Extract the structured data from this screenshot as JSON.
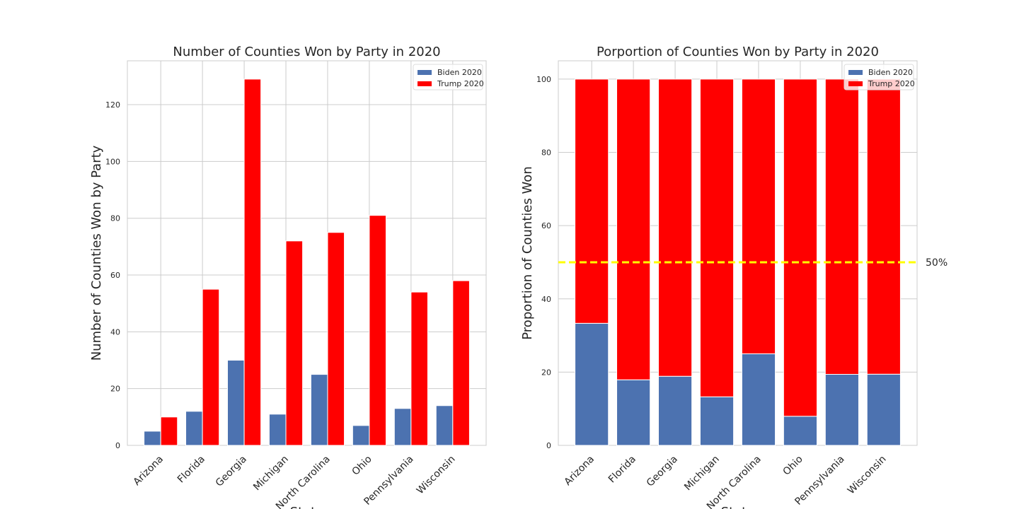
{
  "chart_data": [
    {
      "type": "bar",
      "title": "Number of Counties Won by Party in 2020",
      "xlabel": "State",
      "ylabel": "Number of Counties Won by Party",
      "categories": [
        "Arizona",
        "Florida",
        "Georgia",
        "Michigan",
        "North Carolina",
        "Ohio",
        "Pennsylvania",
        "Wisconsin"
      ],
      "series": [
        {
          "name": "Biden 2020",
          "color": "#4c72b0",
          "values": [
            5,
            12,
            30,
            11,
            25,
            7,
            13,
            14
          ]
        },
        {
          "name": "Trump 2020",
          "color": "#ff0000",
          "values": [
            10,
            55,
            129,
            72,
            75,
            81,
            54,
            58
          ]
        }
      ],
      "ylim": [
        0,
        135.45
      ],
      "yticks": [
        0,
        20,
        40,
        60,
        80,
        100,
        120
      ],
      "grid": true,
      "legend": "upper right"
    },
    {
      "type": "stacked_bar",
      "title": "Porportion of Counties Won by Party in 2020",
      "xlabel": "State",
      "ylabel": "Proportion of Counties Won",
      "categories": [
        "Arizona",
        "Florida",
        "Georgia",
        "Michigan",
        "North Carolina",
        "Ohio",
        "Pennsylvania",
        "Wisconsin"
      ],
      "series": [
        {
          "name": "Biden 2020",
          "color": "#4c72b0",
          "values": [
            33.33,
            17.91,
            18.87,
            13.25,
            25,
            7.95,
            19.4,
            19.44
          ]
        },
        {
          "name": "Trump 2020",
          "color": "#ff0000",
          "values": [
            66.67,
            82.09,
            81.13,
            86.75,
            75,
            92.05,
            80.6,
            80.56
          ]
        }
      ],
      "hline": {
        "value": 50,
        "label": "50%",
        "color": "#ffff00"
      },
      "ylim": [
        0,
        105
      ],
      "yticks": [
        0,
        20,
        40,
        60,
        80,
        100
      ],
      "grid": true,
      "legend": "upper right"
    }
  ]
}
